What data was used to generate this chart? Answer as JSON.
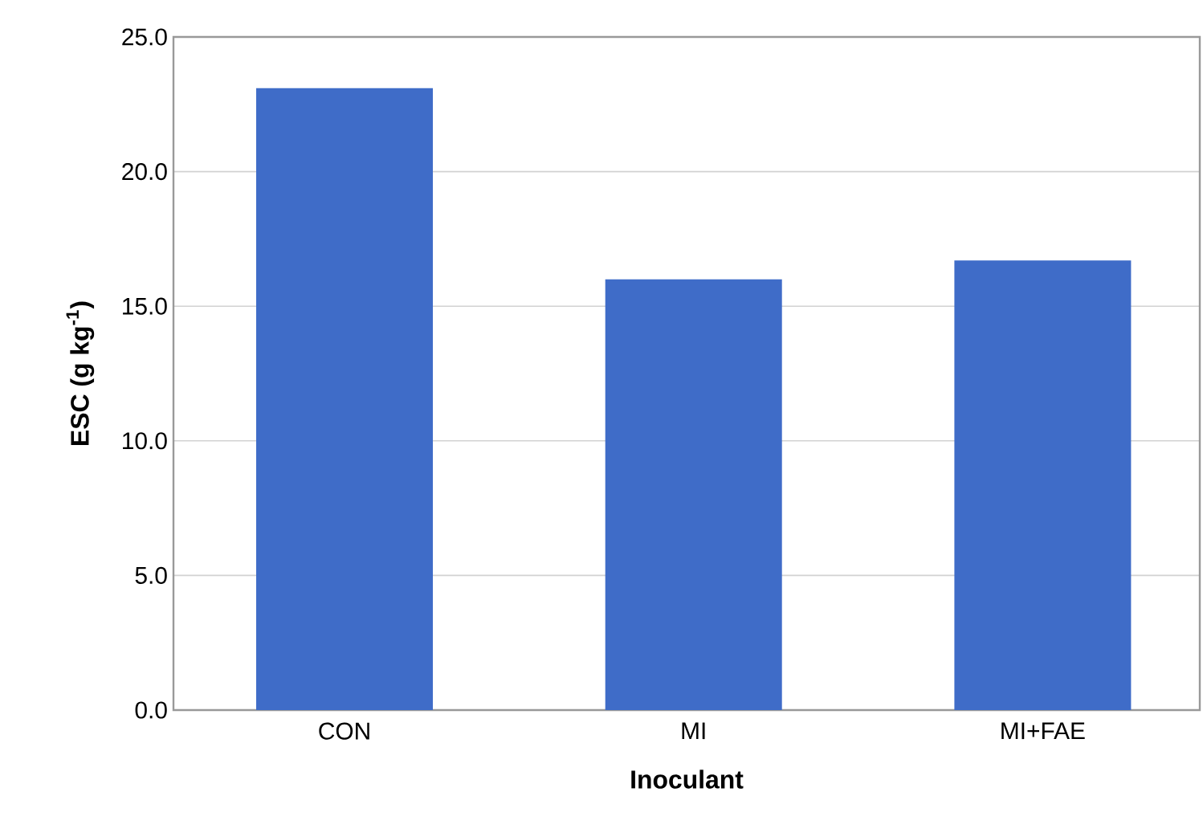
{
  "chart_data": {
    "type": "bar",
    "xlabel": "Inoculant",
    "ylabel": "ESC (g kg$^{-1}$)",
    "categories": [
      "CON",
      "MI",
      "MI+FAE"
    ],
    "values": [
      23.1,
      16.0,
      16.7
    ],
    "color": "#3f6cc8",
    "ylim": [
      0,
      25
    ],
    "yticks": [
      {
        "value": 0,
        "label": "0.0"
      },
      {
        "value": 5,
        "label": "5.0"
      },
      {
        "value": 10,
        "label": "10.0"
      },
      {
        "value": 15,
        "label": "15.0"
      },
      {
        "value": 20,
        "label": "20.0"
      },
      {
        "value": 25,
        "label": "25.0"
      }
    ],
    "grid": "y"
  }
}
